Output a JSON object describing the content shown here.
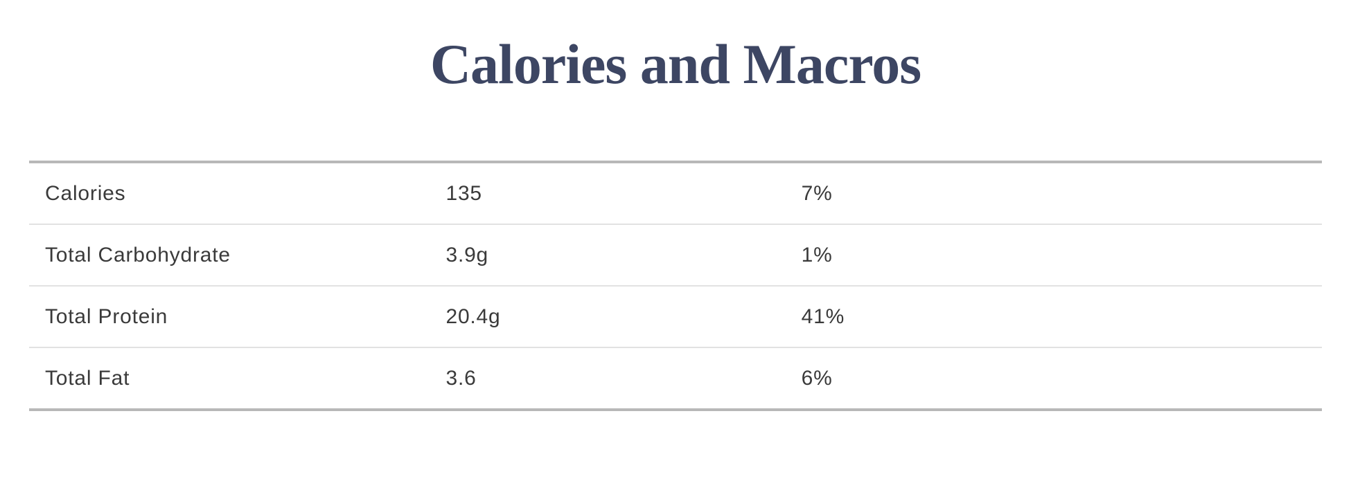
{
  "colors": {
    "title": "#3d4663",
    "body_text": "#3a3a3a",
    "border_heavy": "#b8b8b8",
    "border_light": "#e2e2e2",
    "background": "#ffffff"
  },
  "chart_data": {
    "type": "table",
    "title": "Calories and Macros",
    "columns": [
      "nutrient",
      "amount",
      "daily_value_percent"
    ],
    "rows": [
      [
        "Calories",
        "135",
        "7%"
      ],
      [
        "Total Carbohydrate",
        "3.9g",
        "1%"
      ],
      [
        "Total Protein",
        "20.4g",
        "41%"
      ],
      [
        "Total Fat",
        "3.6",
        "6%"
      ]
    ]
  }
}
